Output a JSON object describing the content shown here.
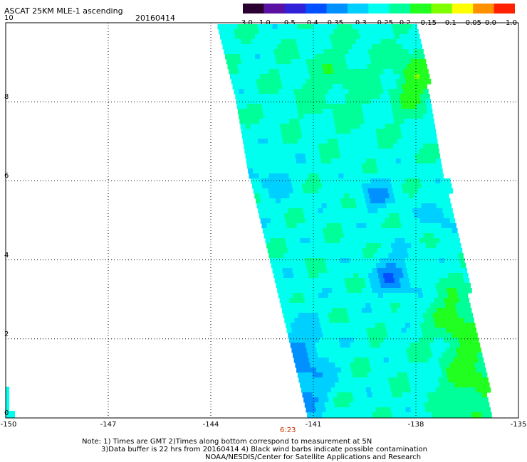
{
  "header": {
    "title": "ASCAT 25KM MLE-1 ascending",
    "date": "20160414"
  },
  "colorbar": {
    "labels": [
      "-3.0",
      "-1.0",
      "-0.5",
      "-0.4",
      "-0.35",
      "-0.3",
      "-0.25",
      "-0.2",
      "-0.15",
      "-0.1",
      "-0.05",
      "0.0",
      "1.0"
    ],
    "colors": [
      "#2a0030",
      "#5a10a0",
      "#3020d8",
      "#0050ff",
      "#0090ff",
      "#00d0ff",
      "#00ffee",
      "#00ff99",
      "#20ff20",
      "#80ff00",
      "#ffff00",
      "#ff9000",
      "#ff2000"
    ]
  },
  "map": {
    "y_labels": [
      "10",
      "8",
      "6",
      "4",
      "2",
      "0"
    ],
    "x_labels": [
      "-150",
      "-147",
      "-144",
      "-141",
      "-138",
      "-135"
    ],
    "time_label": "6:23",
    "lon_range": [
      -150,
      -135
    ],
    "lat_range": [
      0,
      10
    ]
  },
  "notes": {
    "line1": "Note: 1) Times are GMT 2)Times along bottom correspond to measurement at 5N",
    "line2": "3)Data buffer is 22 hrs from 20160414 4) Black wind barbs indicate possible contamination",
    "line3": "NOAA/NESDIS/Center for Satellite Applications and Research"
  }
}
